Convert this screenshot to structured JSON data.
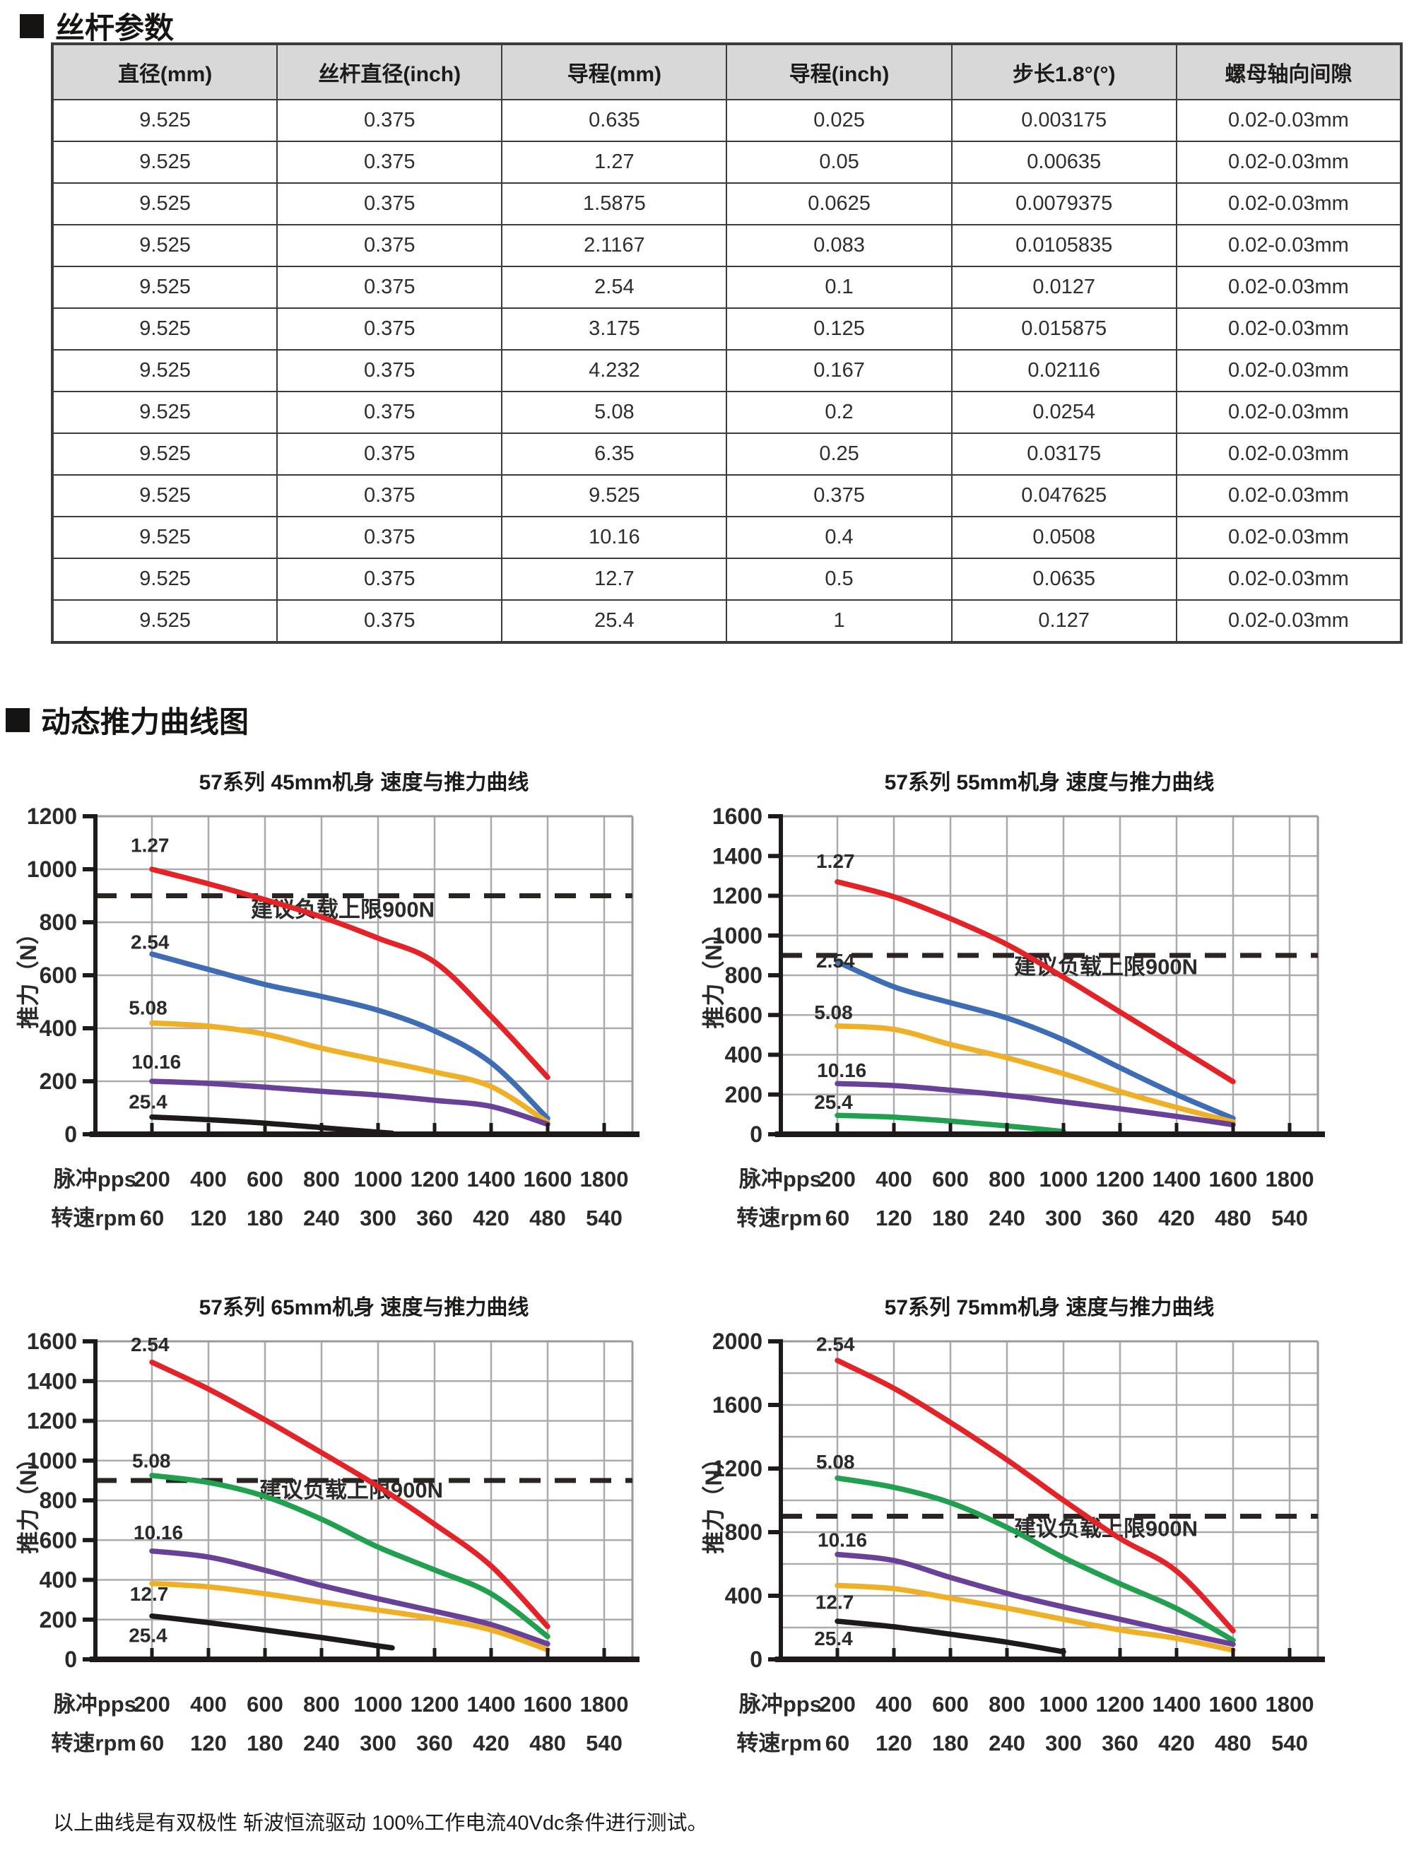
{
  "sections": {
    "screw_params": {
      "title": "丝杆参数"
    },
    "thrust_curves": {
      "title": "动态推力曲线图"
    }
  },
  "table": {
    "header_bg": "#d8d8d8",
    "border_color": "#3b3b3a",
    "columns": [
      "直径(mm)",
      "丝杆直径(inch)",
      "导程(mm)",
      "导程(inch)",
      "步长1.8°(°)",
      "螺母轴向间隙"
    ],
    "rows": [
      [
        "9.525",
        "0.375",
        "0.635",
        "0.025",
        "0.003175",
        "0.02-0.03mm"
      ],
      [
        "9.525",
        "0.375",
        "1.27",
        "0.05",
        "0.00635",
        "0.02-0.03mm"
      ],
      [
        "9.525",
        "0.375",
        "1.5875",
        "0.0625",
        "0.0079375",
        "0.02-0.03mm"
      ],
      [
        "9.525",
        "0.375",
        "2.1167",
        "0.083",
        "0.0105835",
        "0.02-0.03mm"
      ],
      [
        "9.525",
        "0.375",
        "2.54",
        "0.1",
        "0.0127",
        "0.02-0.03mm"
      ],
      [
        "9.525",
        "0.375",
        "3.175",
        "0.125",
        "0.015875",
        "0.02-0.03mm"
      ],
      [
        "9.525",
        "0.375",
        "4.232",
        "0.167",
        "0.02116",
        "0.02-0.03mm"
      ],
      [
        "9.525",
        "0.375",
        "5.08",
        "0.2",
        "0.0254",
        "0.02-0.03mm"
      ],
      [
        "9.525",
        "0.375",
        "6.35",
        "0.25",
        "0.03175",
        "0.02-0.03mm"
      ],
      [
        "9.525",
        "0.375",
        "9.525",
        "0.375",
        "0.047625",
        "0.02-0.03mm"
      ],
      [
        "9.525",
        "0.375",
        "10.16",
        "0.4",
        "0.0508",
        "0.02-0.03mm"
      ],
      [
        "9.525",
        "0.375",
        "12.7",
        "0.5",
        "0.0635",
        "0.02-0.03mm"
      ],
      [
        "9.525",
        "0.375",
        "25.4",
        "1",
        "0.127",
        "0.02-0.03mm"
      ]
    ]
  },
  "footer_note": "以上曲线是有双极性 斩波恒流驱动 100%工作电流40Vdc条件进行测试。",
  "chart_colors": {
    "grid": "#ababab",
    "frame": "#9b9b9b",
    "axis": "#1d1a19",
    "dashed": "#2b2422",
    "text": "#2b2a29"
  },
  "chart_data": [
    {
      "type": "line",
      "title": "57系列 45mm机身 速度与推力曲线",
      "ylabel": "推力（N）",
      "ylim": [
        0,
        1200
      ],
      "grid_step": 200,
      "ylabel_every": 200,
      "grid": true,
      "xlabel_pulse": "脉冲pps",
      "xlabel_speed": "转速rpm",
      "x_pulse_ticks": [
        200,
        400,
        600,
        800,
        1000,
        1200,
        1400,
        1600,
        1800
      ],
      "x_speed_ticks": [
        60,
        120,
        180,
        240,
        300,
        360,
        420,
        480,
        540
      ],
      "limit_line": {
        "value": 900,
        "label": "建议负载上限900N",
        "label_pos": [
          875,
          820
        ]
      },
      "series": [
        {
          "name": "1.27",
          "color": "#e42328",
          "label_pos": [
            125,
            1065
          ],
          "x": [
            200,
            400,
            600,
            800,
            1000,
            1200,
            1400,
            1600
          ],
          "y": [
            1000,
            945,
            885,
            820,
            740,
            650,
            445,
            215
          ]
        },
        {
          "name": "2.54",
          "color": "#3e6db5",
          "label_pos": [
            125,
            700
          ],
          "x": [
            200,
            400,
            600,
            800,
            1000,
            1200,
            1400,
            1600
          ],
          "y": [
            680,
            622,
            565,
            520,
            468,
            390,
            270,
            60
          ]
        },
        {
          "name": "5.08",
          "color": "#efb028",
          "label_pos": [
            118,
            452
          ],
          "x": [
            200,
            400,
            600,
            800,
            1000,
            1200,
            1400,
            1600
          ],
          "y": [
            420,
            408,
            378,
            325,
            280,
            235,
            180,
            45
          ]
        },
        {
          "name": "10.16",
          "color": "#6a4198",
          "label_pos": [
            128,
            248
          ],
          "x": [
            200,
            400,
            600,
            800,
            1000,
            1200,
            1400,
            1600
          ],
          "y": [
            200,
            192,
            178,
            162,
            148,
            128,
            105,
            38
          ]
        },
        {
          "name": "25.4",
          "color": "#1d1a19",
          "label_pos": [
            118,
            98
          ],
          "x": [
            200,
            400,
            600,
            800,
            1000,
            1050
          ],
          "y": [
            65,
            55,
            42,
            25,
            8,
            4
          ]
        }
      ]
    },
    {
      "type": "line",
      "title": "57系列 55mm机身 速度与推力曲线",
      "ylabel": "推力（N）",
      "ylim": [
        0,
        1600
      ],
      "grid_step": 200,
      "ylabel_every": 200,
      "grid": true,
      "xlabel_pulse": "脉冲pps",
      "xlabel_speed": "转速rpm",
      "x_pulse_ticks": [
        200,
        400,
        600,
        800,
        1000,
        1200,
        1400,
        1600,
        1800
      ],
      "x_speed_ticks": [
        60,
        120,
        180,
        240,
        300,
        360,
        420,
        480,
        540
      ],
      "limit_line": {
        "value": 900,
        "label": "建议负载上限900N",
        "label_pos": [
          1150,
          805
        ]
      },
      "series": [
        {
          "name": "1.27",
          "color": "#e42328",
          "label_pos": [
            125,
            1340
          ],
          "x": [
            200,
            400,
            600,
            800,
            1000,
            1200,
            1400,
            1600
          ],
          "y": [
            1270,
            1195,
            1085,
            955,
            790,
            615,
            440,
            265
          ]
        },
        {
          "name": "2.54",
          "color": "#3e6db5",
          "label_pos": [
            125,
            840
          ],
          "x": [
            200,
            400,
            600,
            800,
            1000,
            1200,
            1400,
            1600
          ],
          "y": [
            868,
            742,
            662,
            585,
            475,
            335,
            200,
            80
          ]
        },
        {
          "name": "5.08",
          "color": "#efb028",
          "label_pos": [
            118,
            580
          ],
          "x": [
            200,
            400,
            600,
            800,
            1000,
            1200,
            1400,
            1600
          ],
          "y": [
            545,
            528,
            452,
            385,
            305,
            215,
            135,
            62
          ]
        },
        {
          "name": "10.16",
          "color": "#6a4198",
          "label_pos": [
            128,
            288
          ],
          "x": [
            200,
            400,
            600,
            800,
            1000,
            1200,
            1400,
            1600
          ],
          "y": [
            255,
            245,
            222,
            196,
            163,
            128,
            90,
            48
          ]
        },
        {
          "name": "25.4",
          "color": "#21a04f",
          "label_pos": [
            118,
            128
          ],
          "x": [
            200,
            400,
            600,
            800,
            1000
          ],
          "y": [
            95,
            86,
            66,
            42,
            14
          ]
        }
      ]
    },
    {
      "type": "line",
      "title": "57系列 65mm机身 速度与推力曲线",
      "ylabel": "推力（N）",
      "ylim": [
        0,
        1600
      ],
      "grid_step": 200,
      "ylabel_every": 200,
      "grid": true,
      "xlabel_pulse": "脉冲pps",
      "xlabel_speed": "转速rpm",
      "x_pulse_ticks": [
        200,
        400,
        600,
        800,
        1000,
        1200,
        1400,
        1600,
        1800
      ],
      "x_speed_ticks": [
        60,
        120,
        180,
        240,
        300,
        360,
        420,
        480,
        540
      ],
      "limit_line": {
        "value": 900,
        "label": "建议负载上限900N",
        "label_pos": [
          905,
          815
        ]
      },
      "series": [
        {
          "name": "2.54",
          "color": "#e42328",
          "label_pos": [
            125,
            1550
          ],
          "x": [
            200,
            400,
            600,
            800,
            1000,
            1200,
            1400,
            1600
          ],
          "y": [
            1495,
            1360,
            1205,
            1040,
            870,
            680,
            470,
            165
          ]
        },
        {
          "name": "5.08",
          "color": "#21a04f",
          "label_pos": [
            130,
            965
          ],
          "x": [
            200,
            400,
            600,
            800,
            1000,
            1200,
            1400,
            1600
          ],
          "y": [
            925,
            890,
            820,
            705,
            565,
            450,
            330,
            115
          ]
        },
        {
          "name": "10.16",
          "color": "#6a4198",
          "label_pos": [
            135,
            605
          ],
          "x": [
            200,
            400,
            600,
            800,
            1000,
            1200,
            1400,
            1600
          ],
          "y": [
            545,
            515,
            448,
            372,
            305,
            242,
            175,
            78
          ]
        },
        {
          "name": "12.7",
          "color": "#efb028",
          "label_pos": [
            122,
            295
          ],
          "x": [
            200,
            400,
            600,
            800,
            1000,
            1200,
            1400,
            1600
          ],
          "y": [
            382,
            365,
            330,
            288,
            248,
            205,
            148,
            48
          ]
        },
        {
          "name": "25.4",
          "color": "#1d1a19",
          "label_pos": [
            118,
            88
          ],
          "x": [
            200,
            400,
            600,
            800,
            1000,
            1050
          ],
          "y": [
            218,
            185,
            148,
            110,
            68,
            58
          ]
        }
      ]
    },
    {
      "type": "line",
      "title": "57系列 75mm机身 速度与推力曲线",
      "ylabel": "推力（N）",
      "ylim": [
        0,
        2000
      ],
      "grid_step": 200,
      "ylabel_every": 400,
      "grid": true,
      "xlabel_pulse": "脉冲pps",
      "xlabel_speed": "转速rpm",
      "x_pulse_ticks": [
        200,
        400,
        600,
        800,
        1000,
        1200,
        1400,
        1600,
        1800
      ],
      "x_speed_ticks": [
        60,
        120,
        180,
        240,
        300,
        360,
        420,
        480,
        540
      ],
      "limit_line": {
        "value": 900,
        "label": "建议负载上限900N",
        "label_pos": [
          1150,
          775
        ]
      },
      "series": [
        {
          "name": "2.54",
          "color": "#e42328",
          "label_pos": [
            125,
            1940
          ],
          "x": [
            200,
            400,
            600,
            800,
            1000,
            1200,
            1400,
            1600
          ],
          "y": [
            1880,
            1705,
            1490,
            1255,
            1000,
            760,
            555,
            180
          ]
        },
        {
          "name": "5.08",
          "color": "#21a04f",
          "label_pos": [
            125,
            1200
          ],
          "x": [
            200,
            400,
            600,
            800,
            1000,
            1200,
            1400,
            1600
          ],
          "y": [
            1140,
            1082,
            985,
            830,
            640,
            475,
            320,
            120
          ]
        },
        {
          "name": "10.16",
          "color": "#6a4198",
          "label_pos": [
            130,
            710
          ],
          "x": [
            200,
            400,
            600,
            800,
            1000,
            1200,
            1400,
            1600
          ],
          "y": [
            660,
            622,
            515,
            415,
            330,
            252,
            172,
            95
          ]
        },
        {
          "name": "12.7",
          "color": "#efb028",
          "label_pos": [
            122,
            318
          ],
          "x": [
            200,
            400,
            600,
            800,
            1000,
            1200,
            1400,
            1600
          ],
          "y": [
            465,
            445,
            385,
            322,
            252,
            185,
            132,
            58
          ]
        },
        {
          "name": "25.4",
          "color": "#1d1a19",
          "label_pos": [
            118,
            88
          ],
          "x": [
            200,
            400,
            600,
            800,
            1000
          ],
          "y": [
            240,
            205,
            158,
            108,
            48
          ]
        }
      ]
    }
  ]
}
